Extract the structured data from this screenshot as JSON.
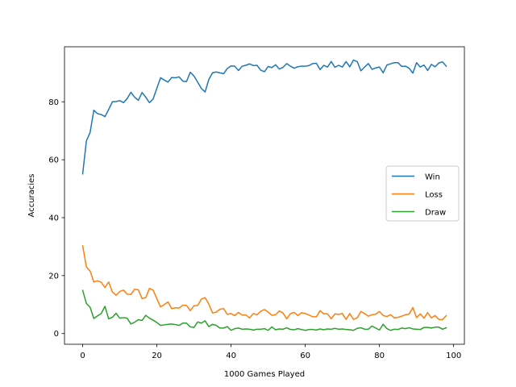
{
  "chart_data": {
    "type": "line",
    "title": "",
    "xlabel": "1000 Games Played",
    "ylabel": "Accuracies",
    "xlim": [
      -4.9,
      102.9
    ],
    "ylim": [
      -3.7,
      99.0
    ],
    "xticks": [
      0,
      20,
      40,
      60,
      80,
      100
    ],
    "yticks": [
      0,
      20,
      40,
      60,
      80
    ],
    "grid": false,
    "legend_position": "center-right",
    "x": [
      0,
      1,
      2,
      3,
      4,
      5,
      6,
      7,
      8,
      9,
      10,
      11,
      12,
      13,
      14,
      15,
      16,
      17,
      18,
      19,
      20,
      21,
      22,
      23,
      24,
      25,
      26,
      27,
      28,
      29,
      30,
      31,
      32,
      33,
      34,
      35,
      36,
      37,
      38,
      39,
      40,
      41,
      42,
      43,
      44,
      45,
      46,
      47,
      48,
      49,
      50,
      51,
      52,
      53,
      54,
      55,
      56,
      57,
      58,
      59,
      60,
      61,
      62,
      63,
      64,
      65,
      66,
      67,
      68,
      69,
      70,
      71,
      72,
      73,
      74,
      75,
      76,
      77,
      78,
      79,
      80,
      81,
      82,
      83,
      84,
      85,
      86,
      87,
      88,
      89,
      90,
      91,
      92,
      93,
      94,
      95,
      96,
      97,
      98
    ],
    "series": [
      {
        "name": "Win",
        "color": "#1f77b4",
        "values": [
          55.1,
          66.5,
          69.4,
          77.1,
          75.9,
          75.6,
          74.9,
          77.3,
          80.0,
          80.1,
          80.4,
          79.7,
          81.1,
          83.3,
          81.6,
          80.5,
          83.2,
          81.6,
          79.7,
          81.0,
          84.7,
          88.3,
          87.5,
          86.8,
          88.4,
          88.3,
          88.6,
          87.1,
          87.0,
          90.2,
          88.9,
          86.8,
          84.6,
          83.4,
          87.7,
          90.0,
          90.3,
          90.0,
          89.7,
          91.5,
          92.4,
          92.3,
          90.8,
          92.3,
          92.6,
          93.1,
          92.5,
          92.6,
          90.9,
          90.4,
          92.2,
          91.8,
          92.8,
          91.3,
          91.9,
          93.2,
          92.3,
          91.6,
          92.1,
          92.3,
          92.3,
          92.5,
          93.2,
          93.3,
          91.1,
          92.6,
          92.0,
          93.9,
          91.9,
          92.6,
          92.0,
          93.9,
          92.1,
          94.4,
          93.9,
          90.7,
          92.0,
          93.2,
          91.2,
          91.7,
          92.0,
          90.0,
          92.7,
          93.1,
          93.5,
          93.5,
          92.2,
          92.3,
          91.6,
          89.9,
          93.5,
          92.0,
          92.7,
          90.8,
          92.9,
          92.1,
          93.4,
          93.8,
          92.3
        ]
      },
      {
        "name": "Loss",
        "color": "#ff7f0e",
        "values": [
          30.3,
          23.0,
          21.6,
          17.8,
          18.2,
          17.7,
          15.9,
          17.8,
          14.4,
          13.2,
          14.5,
          15.0,
          13.6,
          13.5,
          15.3,
          15.1,
          12.1,
          12.4,
          15.6,
          15.0,
          12.0,
          9.2,
          10.0,
          10.9,
          8.6,
          8.9,
          8.8,
          9.8,
          9.7,
          7.9,
          9.6,
          9.7,
          11.9,
          12.4,
          10.2,
          7.1,
          7.4,
          8.4,
          8.6,
          6.6,
          6.9,
          6.2,
          7.3,
          6.4,
          6.4,
          5.4,
          6.9,
          6.5,
          7.7,
          8.3,
          7.4,
          6.3,
          6.5,
          7.8,
          7.1,
          5.1,
          6.9,
          7.3,
          6.2,
          7.2,
          6.9,
          6.4,
          5.8,
          5.8,
          7.9,
          6.8,
          6.8,
          5.1,
          6.8,
          6.6,
          6.9,
          4.9,
          6.9,
          4.9,
          5.4,
          7.6,
          6.9,
          6.0,
          6.5,
          6.7,
          7.6,
          6.2,
          5.9,
          6.5,
          5.4,
          5.6,
          6.0,
          6.5,
          6.7,
          9.0,
          5.5,
          6.8,
          5.3,
          7.2,
          5.4,
          6.2,
          4.9,
          4.8,
          6.2
        ]
      },
      {
        "name": "Draw",
        "color": "#2ca02c",
        "values": [
          14.9,
          10.4,
          9.1,
          5.2,
          6.1,
          6.9,
          9.4,
          5.1,
          5.6,
          7.0,
          5.3,
          5.5,
          5.3,
          3.3,
          3.9,
          4.8,
          4.5,
          6.3,
          5.3,
          4.6,
          3.8,
          2.8,
          3.0,
          3.2,
          3.3,
          3.1,
          2.8,
          3.6,
          3.6,
          2.3,
          2.1,
          4.0,
          3.6,
          4.4,
          2.4,
          3.2,
          2.8,
          1.9,
          1.9,
          2.4,
          1.1,
          1.7,
          1.9,
          1.5,
          1.6,
          1.5,
          1.2,
          1.5,
          1.5,
          1.7,
          1.1,
          2.3,
          1.3,
          1.6,
          1.5,
          2.0,
          1.4,
          1.3,
          1.7,
          1.4,
          1.1,
          1.4,
          1.4,
          1.2,
          1.6,
          1.3,
          1.6,
          1.5,
          1.8,
          1.5,
          1.6,
          1.4,
          1.3,
          1.1,
          1.8,
          2.0,
          1.5,
          1.5,
          2.6,
          1.9,
          1.2,
          3.2,
          1.7,
          1.1,
          1.5,
          1.4,
          1.9,
          1.7,
          2.0,
          1.6,
          1.5,
          1.4,
          2.1,
          2.1,
          1.9,
          2.2,
          2.2,
          1.5,
          2.0
        ]
      }
    ]
  }
}
